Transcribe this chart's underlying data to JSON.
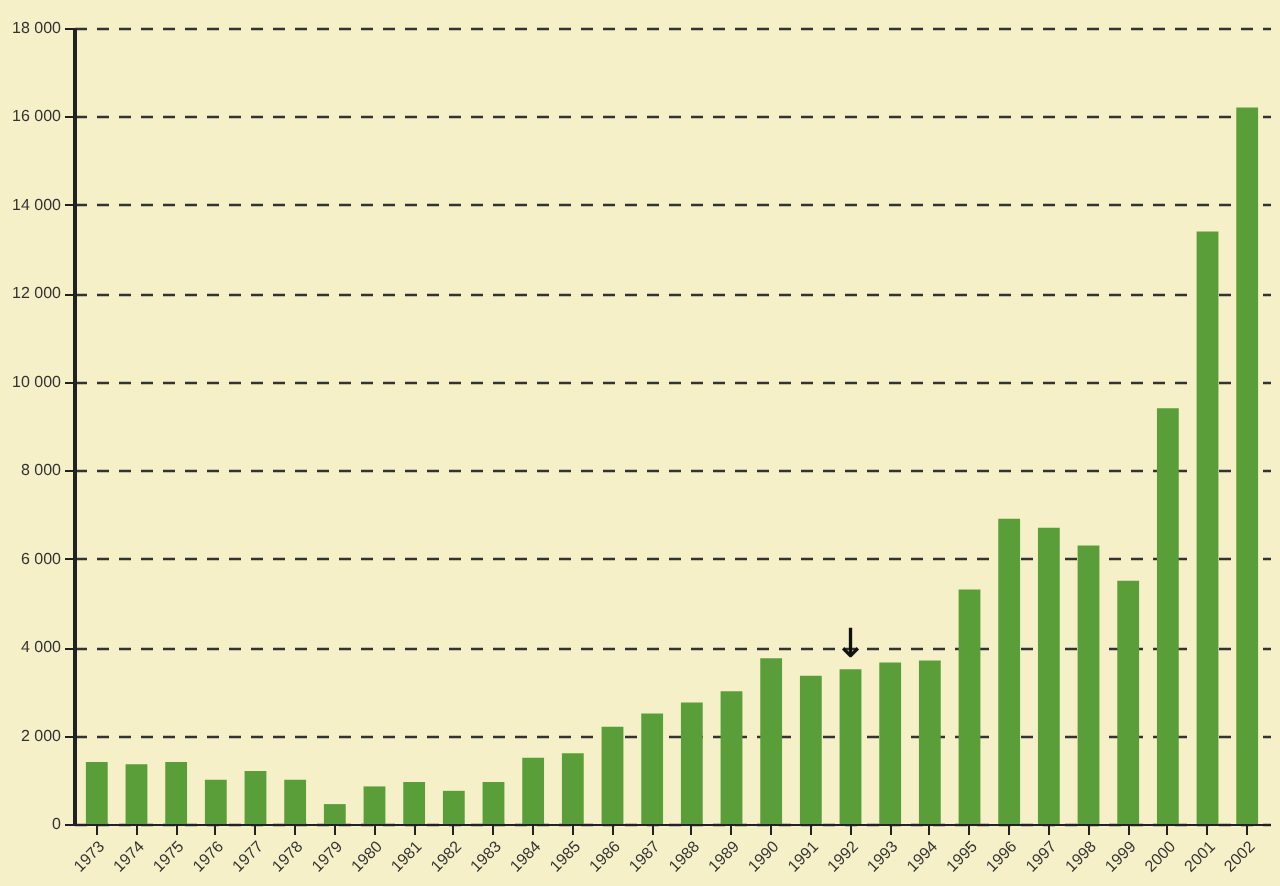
{
  "chart_data": {
    "type": "bar",
    "categories": [
      "1973",
      "1974",
      "1975",
      "1976",
      "1977",
      "1978",
      "1979",
      "1980",
      "1981",
      "1982",
      "1983",
      "1984",
      "1985",
      "1986",
      "1987",
      "1988",
      "1989",
      "1990",
      "1991",
      "1992",
      "1993",
      "1994",
      "1995",
      "1996",
      "1997",
      "1998",
      "1999",
      "2000",
      "2001",
      "2002"
    ],
    "values": [
      1400,
      1350,
      1400,
      1000,
      1200,
      1000,
      450,
      850,
      950,
      750,
      950,
      1500,
      1600,
      2200,
      2500,
      2750,
      3000,
      3750,
      3350,
      3500,
      3650,
      3700,
      5300,
      6900,
      6700,
      6300,
      5500,
      9400,
      13400,
      16200
    ],
    "color": "#5a9e3a",
    "ylim": [
      0,
      18000
    ],
    "yticks": [
      0,
      {
        "value": 2000,
        "label": "2 000"
      },
      {
        "value": 4000,
        "label": "4 000"
      },
      {
        "value": 6000,
        "label": "6 000"
      },
      {
        "value": 8000,
        "label": "8 000"
      },
      {
        "value": 10000,
        "label": "10 000"
      },
      {
        "value": 12000,
        "label": "12 000"
      },
      {
        "value": 14000,
        "label": "14 000"
      },
      {
        "value": 16000,
        "label": "16 000"
      },
      {
        "value": 18000,
        "label": "18 000"
      }
    ],
    "grid": "y",
    "annotations": [
      {
        "text": "↓",
        "x": "1992",
        "y": 3500
      }
    ]
  }
}
